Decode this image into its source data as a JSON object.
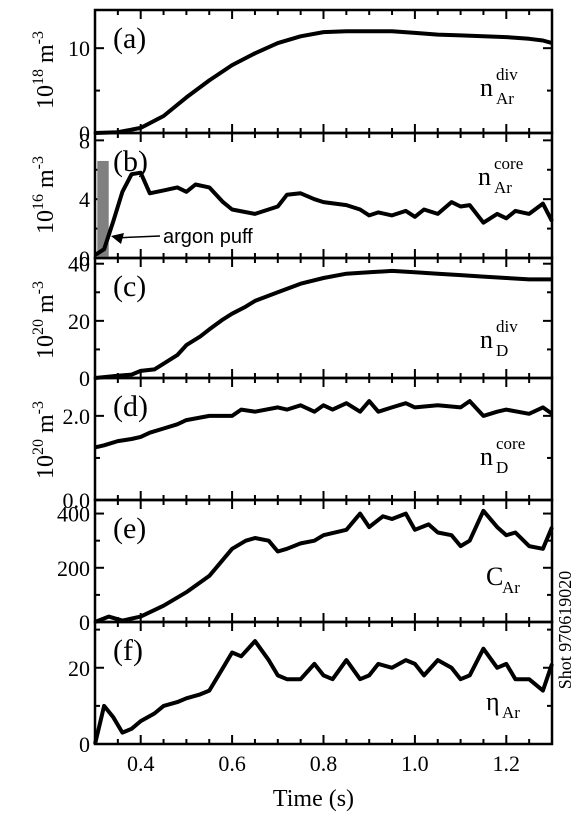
{
  "chart_data": {
    "type": "line",
    "xlabel": "Time (s)",
    "xlim": [
      0.3,
      1.3
    ],
    "x_ticks": [
      "0.4",
      "0.6",
      "0.8",
      "1.0",
      "1.2"
    ],
    "shot_label": "Shot 970619020",
    "panels": [
      {
        "tag": "(a)",
        "unit": [
          "10",
          "18",
          " m",
          "-3"
        ],
        "label": [
          "n",
          "Ar",
          "div"
        ],
        "ylim": [
          0,
          14.5
        ],
        "yticks": [
          {
            "v": 0,
            "t": "0"
          },
          {
            "v": 10,
            "t": "10"
          }
        ],
        "series": {
          "x": [
            0.3,
            0.35,
            0.4,
            0.45,
            0.5,
            0.55,
            0.6,
            0.65,
            0.7,
            0.75,
            0.8,
            0.85,
            0.9,
            0.95,
            1.0,
            1.05,
            1.1,
            1.15,
            1.2,
            1.25,
            1.28,
            1.3
          ],
          "y": [
            0,
            0.1,
            0.6,
            2.0,
            4.2,
            6.2,
            8.0,
            9.4,
            10.6,
            11.4,
            11.9,
            12.0,
            12.0,
            12.0,
            11.8,
            11.6,
            11.5,
            11.4,
            11.3,
            11.1,
            10.9,
            10.6
          ]
        }
      },
      {
        "tag": "(b)",
        "unit": [
          "10",
          "16",
          " m",
          "-3"
        ],
        "label": [
          "n",
          "Ar",
          "core"
        ],
        "ylim": [
          0,
          8.5
        ],
        "yticks": [
          {
            "v": 0,
            "t": "0"
          },
          {
            "v": 4,
            "t": "4"
          },
          {
            "v": 8,
            "t": "8"
          }
        ],
        "annotation": "argon puff",
        "puff_x": [
          0.305,
          0.33
        ],
        "puff_y": [
          0,
          6.6
        ],
        "series": {
          "x": [
            0.3,
            0.32,
            0.34,
            0.36,
            0.38,
            0.4,
            0.42,
            0.45,
            0.48,
            0.5,
            0.52,
            0.55,
            0.58,
            0.6,
            0.65,
            0.7,
            0.72,
            0.75,
            0.78,
            0.8,
            0.85,
            0.88,
            0.9,
            0.92,
            0.95,
            0.98,
            1.0,
            1.02,
            1.05,
            1.08,
            1.1,
            1.12,
            1.15,
            1.18,
            1.2,
            1.22,
            1.25,
            1.28,
            1.3
          ],
          "y": [
            0.2,
            0.6,
            2.5,
            4.5,
            5.7,
            5.8,
            4.4,
            4.6,
            4.8,
            4.5,
            5.0,
            4.8,
            3.8,
            3.3,
            3.0,
            3.5,
            4.3,
            4.4,
            4.0,
            3.8,
            3.6,
            3.3,
            2.9,
            3.1,
            2.9,
            3.2,
            2.8,
            3.3,
            3.0,
            3.8,
            3.5,
            3.6,
            2.4,
            3.0,
            2.7,
            3.2,
            3.0,
            3.7,
            2.5
          ]
        }
      },
      {
        "tag": "(c)",
        "unit": [
          "10",
          "20",
          " m",
          "-3"
        ],
        "label": [
          "n",
          "D",
          "div"
        ],
        "ylim": [
          0,
          42
        ],
        "yticks": [
          {
            "v": 0,
            "t": "0"
          },
          {
            "v": 20,
            "t": "20"
          },
          {
            "v": 40,
            "t": "40"
          }
        ],
        "series": {
          "x": [
            0.3,
            0.32,
            0.35,
            0.38,
            0.4,
            0.43,
            0.45,
            0.48,
            0.5,
            0.53,
            0.55,
            0.58,
            0.6,
            0.63,
            0.65,
            0.7,
            0.75,
            0.8,
            0.85,
            0.9,
            0.95,
            1.0,
            1.05,
            1.1,
            1.15,
            1.2,
            1.25,
            1.3
          ],
          "y": [
            0,
            0.3,
            0.8,
            1.2,
            2.5,
            3.0,
            5.0,
            8.0,
            11.5,
            14.5,
            17.0,
            20.5,
            22.5,
            25.0,
            27.0,
            30.0,
            33.0,
            35.0,
            36.5,
            37.0,
            37.5,
            37.0,
            36.5,
            36.0,
            35.5,
            35.0,
            34.5,
            34.5
          ]
        }
      },
      {
        "tag": "(d)",
        "unit": [
          "10",
          "20",
          " m",
          "-3"
        ],
        "label": [
          "n",
          "D",
          "core"
        ],
        "ylim": [
          0,
          2.9
        ],
        "yticks": [
          {
            "v": 0,
            "t": "0.0"
          },
          {
            "v": 2,
            "t": "2.0"
          }
        ],
        "series": {
          "x": [
            0.3,
            0.32,
            0.35,
            0.38,
            0.4,
            0.42,
            0.45,
            0.48,
            0.5,
            0.55,
            0.6,
            0.62,
            0.65,
            0.7,
            0.72,
            0.75,
            0.78,
            0.8,
            0.82,
            0.85,
            0.88,
            0.9,
            0.92,
            0.95,
            0.98,
            1.0,
            1.05,
            1.1,
            1.12,
            1.15,
            1.18,
            1.2,
            1.25,
            1.28,
            1.3
          ],
          "y": [
            1.25,
            1.3,
            1.4,
            1.45,
            1.5,
            1.6,
            1.7,
            1.8,
            1.9,
            2.0,
            2.0,
            2.15,
            2.1,
            2.2,
            2.15,
            2.25,
            2.1,
            2.25,
            2.15,
            2.3,
            2.1,
            2.35,
            2.1,
            2.2,
            2.3,
            2.2,
            2.25,
            2.2,
            2.35,
            2.0,
            2.1,
            2.15,
            2.05,
            2.2,
            2.05
          ]
        }
      },
      {
        "tag": "(e)",
        "unit": [],
        "label": [
          "C",
          "Ar",
          ""
        ],
        "ylim": [
          0,
          450
        ],
        "yticks": [
          {
            "v": 0,
            "t": "0"
          },
          {
            "v": 200,
            "t": "200"
          },
          {
            "v": 400,
            "t": "400"
          }
        ],
        "series": {
          "x": [
            0.3,
            0.33,
            0.36,
            0.4,
            0.45,
            0.5,
            0.55,
            0.6,
            0.63,
            0.65,
            0.68,
            0.7,
            0.72,
            0.75,
            0.78,
            0.8,
            0.85,
            0.88,
            0.9,
            0.93,
            0.95,
            0.98,
            1.0,
            1.03,
            1.05,
            1.08,
            1.1,
            1.12,
            1.15,
            1.18,
            1.2,
            1.22,
            1.25,
            1.28,
            1.3
          ],
          "y": [
            0,
            20,
            5,
            20,
            60,
            110,
            170,
            270,
            300,
            310,
            300,
            260,
            270,
            290,
            300,
            320,
            340,
            400,
            350,
            390,
            380,
            400,
            340,
            360,
            330,
            320,
            280,
            300,
            410,
            350,
            320,
            330,
            280,
            270,
            350
          ]
        }
      },
      {
        "tag": "(f)",
        "unit": [],
        "label": [
          "η",
          "Ar",
          ""
        ],
        "ylim": [
          0,
          32
        ],
        "yticks": [
          {
            "v": 0,
            "t": "0"
          },
          {
            "v": 20,
            "t": "20"
          }
        ],
        "series": {
          "x": [
            0.3,
            0.31,
            0.32,
            0.34,
            0.36,
            0.38,
            0.4,
            0.43,
            0.45,
            0.48,
            0.5,
            0.53,
            0.55,
            0.58,
            0.6,
            0.62,
            0.65,
            0.68,
            0.7,
            0.72,
            0.75,
            0.78,
            0.8,
            0.82,
            0.85,
            0.88,
            0.9,
            0.92,
            0.95,
            0.98,
            1.0,
            1.02,
            1.05,
            1.08,
            1.1,
            1.12,
            1.15,
            1.18,
            1.2,
            1.22,
            1.25,
            1.28,
            1.3
          ],
          "y": [
            0,
            5,
            10,
            7,
            3,
            4,
            6,
            8,
            10,
            11,
            12,
            13,
            14,
            20,
            24,
            23,
            27,
            22,
            18,
            17,
            17,
            21,
            18,
            17,
            22,
            17,
            18,
            21,
            20,
            22,
            21,
            18,
            22,
            20,
            17,
            18,
            25,
            20,
            21,
            17,
            17,
            14,
            21
          ]
        }
      }
    ]
  }
}
